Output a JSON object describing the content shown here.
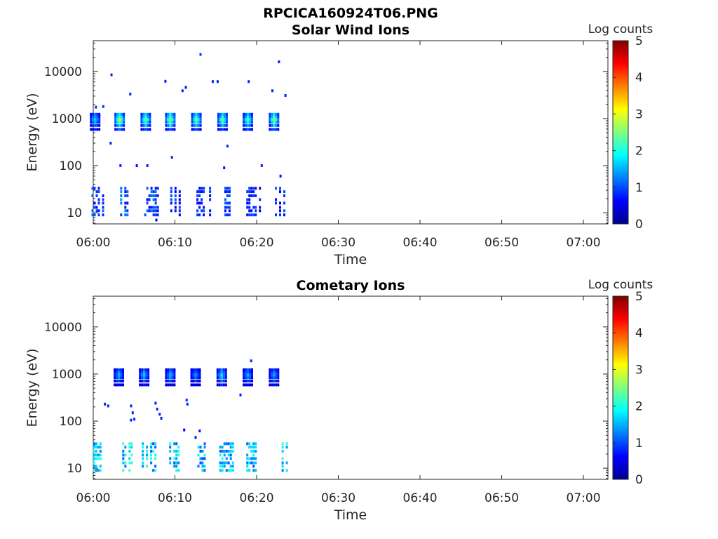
{
  "figure": {
    "title": "RPCICA160924T06.PNG"
  },
  "chart_data": [
    {
      "type": "heatmap",
      "title": "Solar Wind Ions",
      "xlabel": "Time",
      "ylabel": "Energy (eV)",
      "x_range": [
        "06:00",
        "07:03"
      ],
      "x_ticks": [
        "06:00",
        "06:10",
        "06:20",
        "06:30",
        "06:40",
        "06:50",
        "07:00"
      ],
      "y_scale": "log",
      "y_range": [
        5.8,
        45000
      ],
      "y_ticks": [
        10,
        100,
        1000,
        10000
      ],
      "y_tick_labels": [
        "10",
        "100",
        "1000",
        "10000"
      ],
      "colorbar": {
        "label": "Log counts",
        "range": [
          0,
          5
        ],
        "ticks": [
          "0",
          "1",
          "2",
          "3",
          "4",
          "5"
        ],
        "colormap": "jet"
      },
      "grid": false,
      "bursts": [
        {
          "t": 0.1,
          "e": 950,
          "lg": 1.6
        },
        {
          "t": 3.1,
          "e": 950,
          "lg": 2.7
        },
        {
          "t": 6.3,
          "e": 950,
          "lg": 2.4
        },
        {
          "t": 9.3,
          "e": 950,
          "lg": 2.6
        },
        {
          "t": 12.5,
          "e": 950,
          "lg": 2.4
        },
        {
          "t": 15.7,
          "e": 950,
          "lg": 2.4
        },
        {
          "t": 18.8,
          "e": 950,
          "lg": 2.3
        },
        {
          "t": 22.0,
          "e": 950,
          "lg": 2.5
        }
      ],
      "low_bands": [
        {
          "t": 0.3,
          "lg": 1.0
        },
        {
          "t": 3.8,
          "lg": 1.2
        },
        {
          "t": 7.0,
          "lg": 1.1
        },
        {
          "t": 10.2,
          "lg": 1.0
        },
        {
          "t": 13.4,
          "lg": 0.9
        },
        {
          "t": 16.3,
          "lg": 1.0
        },
        {
          "t": 19.5,
          "lg": 0.9
        },
        {
          "t": 23.0,
          "lg": 1.0
        }
      ],
      "sparse_points": [
        {
          "t": 0.2,
          "e": 1750,
          "lg": 0.9
        },
        {
          "t": 1.1,
          "e": 1800,
          "lg": 0.9
        },
        {
          "t": 2.1,
          "e": 8500,
          "lg": 0.8
        },
        {
          "t": 2.0,
          "e": 300,
          "lg": 0.8
        },
        {
          "t": 3.2,
          "e": 100,
          "lg": 0.8
        },
        {
          "t": 4.4,
          "e": 3300,
          "lg": 0.8
        },
        {
          "t": 5.2,
          "e": 100,
          "lg": 0.7
        },
        {
          "t": 6.5,
          "e": 100,
          "lg": 0.8
        },
        {
          "t": 8.7,
          "e": 6200,
          "lg": 0.8
        },
        {
          "t": 9.5,
          "e": 150,
          "lg": 0.8
        },
        {
          "t": 10.8,
          "e": 3900,
          "lg": 0.8
        },
        {
          "t": 11.2,
          "e": 4600,
          "lg": 0.7
        },
        {
          "t": 13.0,
          "e": 23000,
          "lg": 0.9
        },
        {
          "t": 14.5,
          "e": 6100,
          "lg": 0.8
        },
        {
          "t": 15.1,
          "e": 6100,
          "lg": 0.8
        },
        {
          "t": 15.9,
          "e": 90,
          "lg": 0.7
        },
        {
          "t": 16.3,
          "e": 260,
          "lg": 0.8
        },
        {
          "t": 18.9,
          "e": 6100,
          "lg": 0.8
        },
        {
          "t": 20.5,
          "e": 100,
          "lg": 0.8
        },
        {
          "t": 21.8,
          "e": 3900,
          "lg": 0.8
        },
        {
          "t": 22.6,
          "e": 16000,
          "lg": 0.8
        },
        {
          "t": 22.8,
          "e": 60,
          "lg": 0.7
        },
        {
          "t": 23.4,
          "e": 3100,
          "lg": 0.8
        },
        {
          "t": 7.6,
          "e": 7,
          "lg": 0.6
        }
      ]
    },
    {
      "type": "heatmap",
      "title": "Cometary Ions",
      "xlabel": "Time",
      "ylabel": "Energy (eV)",
      "x_range": [
        "06:00",
        "07:03"
      ],
      "x_ticks": [
        "06:00",
        "06:10",
        "06:20",
        "06:30",
        "06:40",
        "06:50",
        "07:00"
      ],
      "y_scale": "log",
      "y_range": [
        5.8,
        45000
      ],
      "y_ticks": [
        10,
        100,
        1000,
        10000
      ],
      "y_tick_labels": [
        "10",
        "100",
        "1000",
        "10000"
      ],
      "colorbar": {
        "label": "Log counts",
        "range": [
          0,
          5
        ],
        "ticks": [
          "0",
          "1",
          "2",
          "3",
          "4",
          "5"
        ],
        "colormap": "jet"
      },
      "grid": false,
      "bursts": [
        {
          "t": 3.0,
          "e": 950,
          "lg": 1.5
        },
        {
          "t": 6.1,
          "e": 950,
          "lg": 1.5
        },
        {
          "t": 9.3,
          "e": 950,
          "lg": 1.4
        },
        {
          "t": 12.4,
          "e": 950,
          "lg": 1.3
        },
        {
          "t": 15.6,
          "e": 950,
          "lg": 1.6
        },
        {
          "t": 18.8,
          "e": 950,
          "lg": 1.4
        },
        {
          "t": 22.0,
          "e": 950,
          "lg": 1.3
        }
      ],
      "low_bands": [
        {
          "t": 0.5,
          "lg": 1.9
        },
        {
          "t": 3.8,
          "lg": 2.0
        },
        {
          "t": 6.7,
          "lg": 1.9
        },
        {
          "t": 9.8,
          "lg": 1.9
        },
        {
          "t": 13.0,
          "lg": 1.8
        },
        {
          "t": 16.2,
          "lg": 1.8
        },
        {
          "t": 19.5,
          "lg": 1.7
        },
        {
          "t": 22.8,
          "lg": 1.9
        }
      ],
      "sparse_points": [
        {
          "t": 1.3,
          "e": 230,
          "lg": 0.8
        },
        {
          "t": 1.7,
          "e": 210,
          "lg": 0.8
        },
        {
          "t": 4.5,
          "e": 210,
          "lg": 0.8
        },
        {
          "t": 4.7,
          "e": 150,
          "lg": 0.8
        },
        {
          "t": 4.9,
          "e": 110,
          "lg": 0.8
        },
        {
          "t": 4.5,
          "e": 105,
          "lg": 0.8
        },
        {
          "t": 7.5,
          "e": 240,
          "lg": 0.8
        },
        {
          "t": 7.7,
          "e": 180,
          "lg": 0.8
        },
        {
          "t": 8.0,
          "e": 140,
          "lg": 0.8
        },
        {
          "t": 8.2,
          "e": 115,
          "lg": 0.8
        },
        {
          "t": 11.3,
          "e": 280,
          "lg": 0.8
        },
        {
          "t": 11.4,
          "e": 230,
          "lg": 0.8
        },
        {
          "t": 12.4,
          "e": 45,
          "lg": 0.7
        },
        {
          "t": 12.9,
          "e": 62,
          "lg": 0.7
        },
        {
          "t": 11.0,
          "e": 65,
          "lg": 0.6
        },
        {
          "t": 17.9,
          "e": 360,
          "lg": 0.8
        },
        {
          "t": 19.2,
          "e": 1900,
          "lg": 0.8
        }
      ]
    }
  ]
}
